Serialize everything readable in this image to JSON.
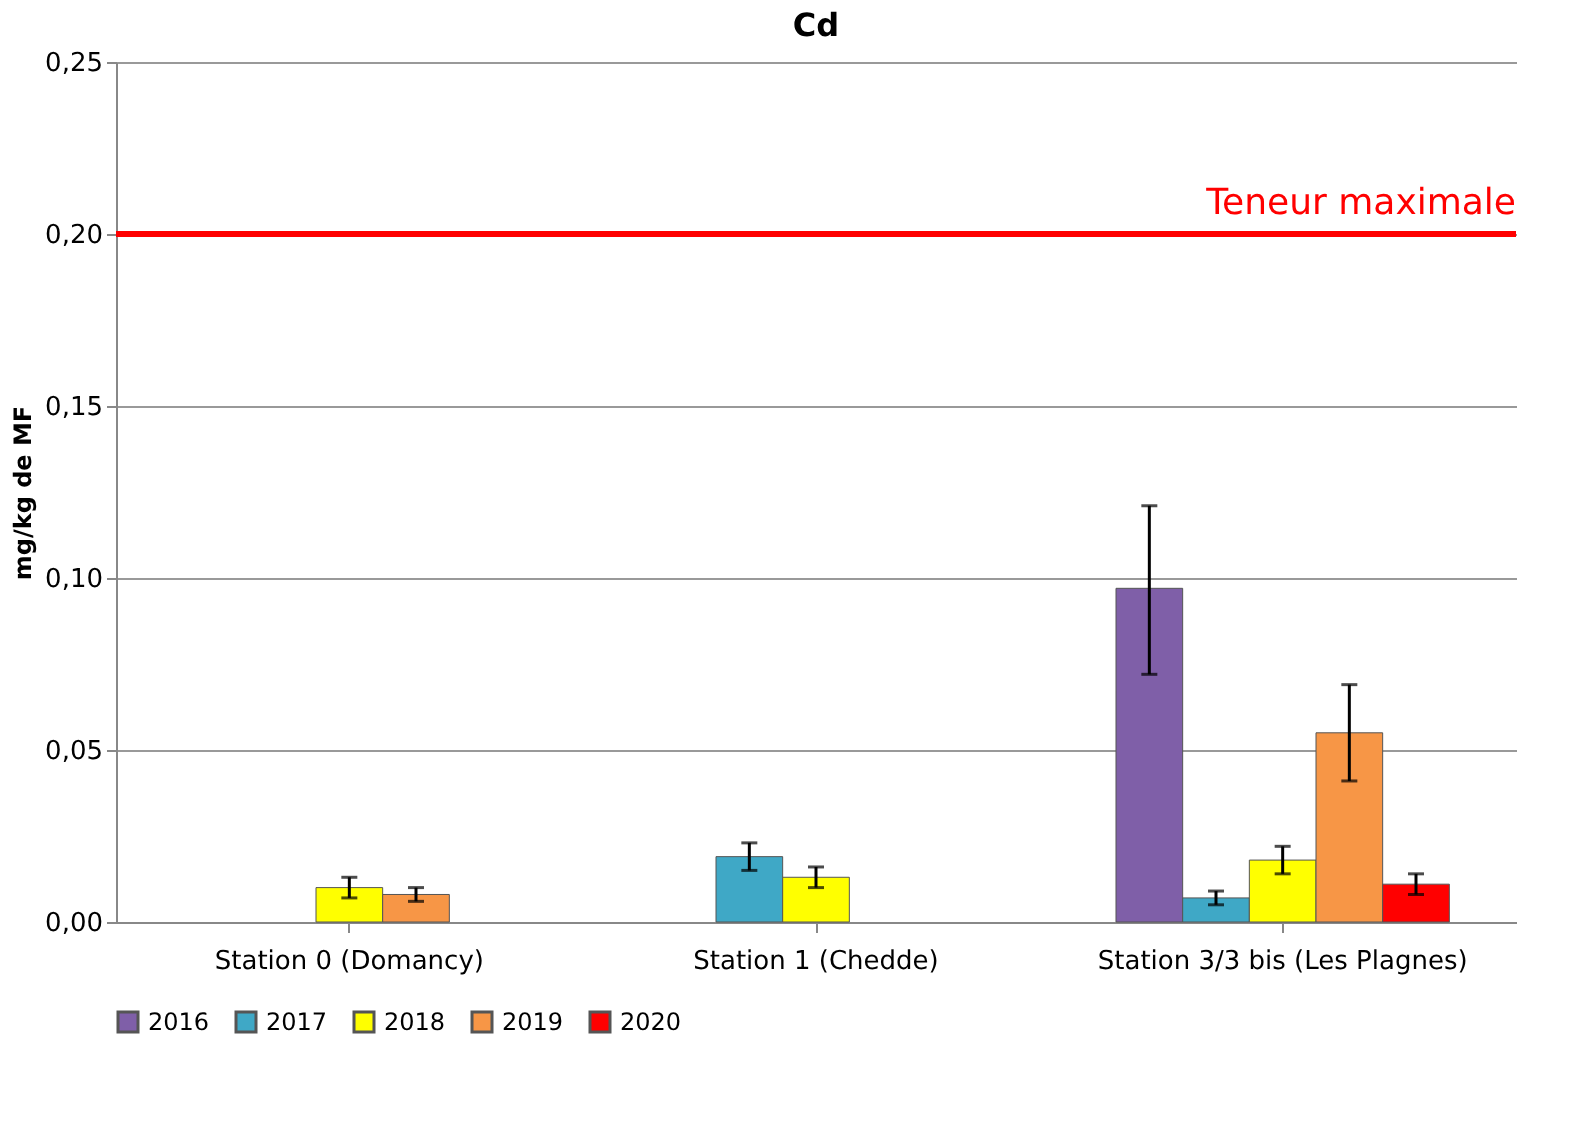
{
  "chart_data": {
    "type": "bar",
    "title": "Cd",
    "ylabel": "mg/kg de MF",
    "categories": [
      "Station 0 (Domancy)",
      "Station 1 (Chedde)",
      "Station 3/3 bis (Les Plagnes)"
    ],
    "series": [
      {
        "name": "2016",
        "color": "#7f5fa8",
        "values": [
          null,
          null,
          0.097
        ],
        "errors": [
          null,
          null,
          [
            0.072,
            0.121
          ]
        ]
      },
      {
        "name": "2017",
        "color": "#3fa8c6",
        "values": [
          null,
          0.019,
          0.007
        ],
        "errors": [
          null,
          0.004,
          0.002
        ]
      },
      {
        "name": "2018",
        "color": "#ffff00",
        "values": [
          0.01,
          0.013,
          0.018
        ],
        "errors": [
          0.003,
          0.003,
          0.004
        ]
      },
      {
        "name": "2019",
        "color": "#f79646",
        "values": [
          0.008,
          null,
          0.055
        ],
        "errors": [
          0.002,
          null,
          [
            0.041,
            0.069
          ]
        ]
      },
      {
        "name": "2020",
        "color": "#ff0000",
        "values": [
          null,
          null,
          0.011
        ],
        "errors": [
          null,
          null,
          0.003
        ]
      }
    ],
    "ylim": [
      0,
      0.25
    ],
    "yticks": [
      {
        "value": 0,
        "label": "0,00"
      },
      {
        "value": 0.05,
        "label": "0,05"
      },
      {
        "value": 0.1,
        "label": "0,10"
      },
      {
        "value": 0.15,
        "label": "0,15"
      },
      {
        "value": 0.2,
        "label": "0,20"
      },
      {
        "value": 0.25,
        "label": "0,25"
      }
    ],
    "ref_lines": [
      {
        "axis": "y",
        "value": 0.2,
        "label": "Teneur maximale",
        "color": "#ff0000"
      }
    ],
    "grid": "y",
    "legend": "bottom"
  }
}
